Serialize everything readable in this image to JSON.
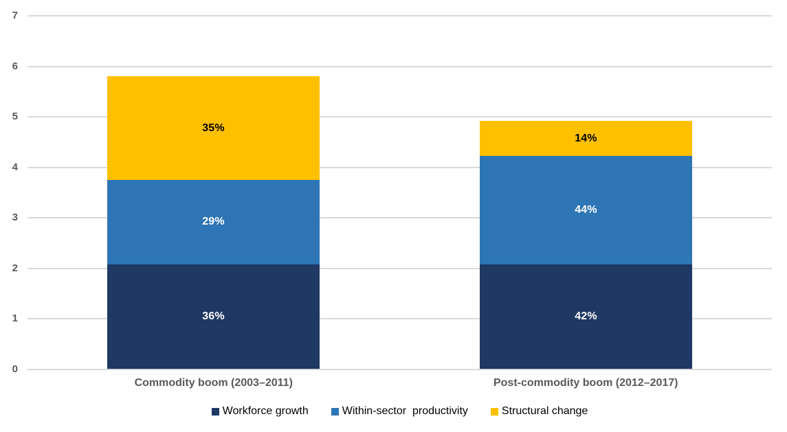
{
  "chart_data": {
    "type": "bar",
    "stacked": true,
    "title": "",
    "xlabel": "",
    "ylabel": "",
    "categories": [
      "Commodity boom (2003–2011)",
      "Post-commodity boom (2012–2017)"
    ],
    "series": [
      {
        "name": "Workforce growth",
        "color": "#1F3864",
        "values": [
          2.08,
          2.07
        ],
        "percent_labels": [
          "36%",
          "42%"
        ],
        "label_color": "#FFFFFF"
      },
      {
        "name": "Within-sector  productivity",
        "color": "#2E75B6",
        "values": [
          1.67,
          2.15
        ],
        "percent_labels": [
          "29%",
          "44%"
        ],
        "label_color": "#FFFFFF"
      },
      {
        "name": "Structural change",
        "color": "#FFC000",
        "values": [
          2.05,
          0.7
        ],
        "percent_labels": [
          "35%",
          "14%"
        ],
        "label_color": "#000000"
      }
    ],
    "bar_totals": [
      5.8,
      4.92
    ],
    "ylim": [
      0,
      7
    ],
    "yticks": [
      0,
      1,
      2,
      3,
      4,
      5,
      6,
      7
    ],
    "grid": true,
    "legend_position": "bottom",
    "colors": {
      "gridline": "#D9D9D9",
      "axis_tick_label": "#595959",
      "category_label": "#595959",
      "legend_text": "#000000",
      "background": "#FFFFFF"
    }
  }
}
